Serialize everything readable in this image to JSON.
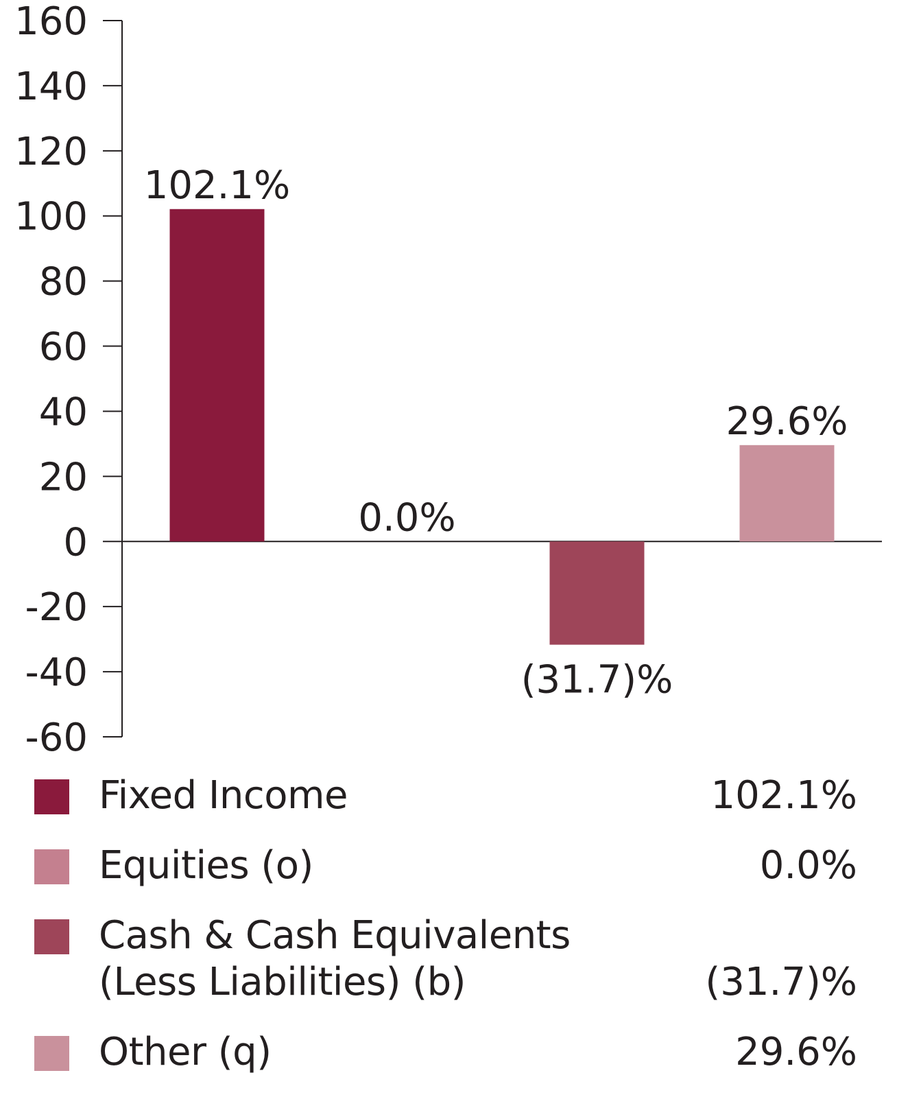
{
  "chart_data": {
    "type": "bar",
    "categories": [
      "Fixed Income",
      "Equities (o)",
      "Cash & Cash Equivalents (Less Liabilities) (b)",
      "Other (q)"
    ],
    "values": [
      102.1,
      0.0,
      -31.7,
      29.6
    ],
    "data_labels": [
      "102.1%",
      "0.0%",
      "(31.7)%",
      "29.6%"
    ],
    "colors": [
      "#8a1a3c",
      "#c4808f",
      "#9e4559",
      "#c9919c"
    ],
    "title": "",
    "xlabel": "",
    "ylabel": "",
    "ylim": [
      -60,
      160
    ],
    "yticks": [
      160,
      140,
      120,
      100,
      80,
      60,
      40,
      20,
      0,
      -20,
      -40,
      -60
    ],
    "ytick_labels": [
      "160",
      "140",
      "120",
      "100",
      "80",
      "60",
      "40",
      "20",
      "0",
      "-20",
      "-40",
      "-60"
    ],
    "grid": false,
    "legend_position": "bottom"
  },
  "legend": {
    "items": [
      {
        "label_lines": [
          "Fixed Income"
        ],
        "value": "102.1%",
        "color": "#8a1a3c"
      },
      {
        "label_lines": [
          "Equities (o)"
        ],
        "value": "0.0%",
        "color": "#c4808f"
      },
      {
        "label_lines": [
          "Cash & Cash Equivalents",
          "(Less Liabilities) (b)"
        ],
        "value": "(31.7)%",
        "color": "#9e4559"
      },
      {
        "label_lines": [
          "Other (q)"
        ],
        "value": "29.6%",
        "color": "#c9919c"
      }
    ]
  }
}
